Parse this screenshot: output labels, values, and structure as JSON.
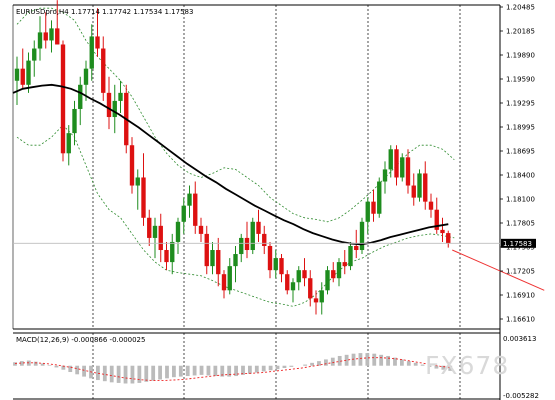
{
  "chart_data": [
    {
      "type": "candlestick",
      "header": "EURUSDpro,H4  1.17714 1.17742 1.17534 1.17583",
      "y_ticks": [
        "1.20485",
        "1.20185",
        "1.19890",
        "1.19590",
        "1.19295",
        "1.18995",
        "1.18695",
        "1.18400",
        "1.18100",
        "1.17805",
        "1.17505",
        "1.17205",
        "1.16910",
        "1.16610"
      ],
      "current_price_label": "1.17583",
      "current_price": 1.17583,
      "ylim": [
        1.1652,
        1.2054
      ],
      "candles_ohlc": [
        [
          1.196,
          1.199,
          1.193,
          1.1975
        ],
        [
          1.1975,
          1.2,
          1.195,
          1.1955
        ],
        [
          1.1955,
          1.1995,
          1.1945,
          1.1985
        ],
        [
          1.1985,
          1.201,
          1.1965,
          1.2
        ],
        [
          1.2,
          1.204,
          1.1985,
          1.202
        ],
        [
          1.202,
          1.2045,
          1.2,
          1.201
        ],
        [
          1.201,
          1.2035,
          1.1995,
          1.2025
        ],
        [
          1.2025,
          1.206,
          1.2005,
          1.2005
        ],
        [
          1.2005,
          1.201,
          1.186,
          1.187
        ],
        [
          1.187,
          1.1905,
          1.1855,
          1.1895
        ],
        [
          1.1895,
          1.1935,
          1.188,
          1.1925
        ],
        [
          1.1925,
          1.1965,
          1.1905,
          1.1955
        ],
        [
          1.1955,
          1.1985,
          1.1935,
          1.1975
        ],
        [
          1.1975,
          1.203,
          1.196,
          1.2015
        ],
        [
          1.2015,
          1.205,
          1.199,
          1.2
        ],
        [
          1.2,
          1.2015,
          1.1935,
          1.1945
        ],
        [
          1.1945,
          1.1965,
          1.19,
          1.1915
        ],
        [
          1.1915,
          1.1955,
          1.1895,
          1.1935
        ],
        [
          1.1935,
          1.196,
          1.192,
          1.1945
        ],
        [
          1.1945,
          1.1955,
          1.187,
          1.188
        ],
        [
          1.188,
          1.189,
          1.182,
          1.183
        ],
        [
          1.183,
          1.185,
          1.18,
          1.184
        ],
        [
          1.184,
          1.187,
          1.178,
          1.179
        ],
        [
          1.179,
          1.18,
          1.1755,
          1.1765
        ],
        [
          1.1765,
          1.179,
          1.174,
          1.178
        ],
        [
          1.178,
          1.1795,
          1.1735,
          1.175
        ],
        [
          1.175,
          1.176,
          1.1725,
          1.1735
        ],
        [
          1.1735,
          1.177,
          1.172,
          1.176
        ],
        [
          1.176,
          1.179,
          1.1745,
          1.1785
        ],
        [
          1.1785,
          1.1815,
          1.177,
          1.1805
        ],
        [
          1.1805,
          1.183,
          1.179,
          1.182
        ],
        [
          1.182,
          1.1835,
          1.177,
          1.178
        ],
        [
          1.178,
          1.179,
          1.176,
          1.177
        ],
        [
          1.177,
          1.178,
          1.172,
          1.173
        ],
        [
          1.173,
          1.176,
          1.172,
          1.175
        ],
        [
          1.175,
          1.1765,
          1.1705,
          1.172
        ],
        [
          1.172,
          1.1725,
          1.169,
          1.17
        ],
        [
          1.17,
          1.174,
          1.1695,
          1.173
        ],
        [
          1.173,
          1.1755,
          1.171,
          1.1745
        ],
        [
          1.1745,
          1.177,
          1.1735,
          1.1765
        ],
        [
          1.1765,
          1.1785,
          1.174,
          1.175
        ],
        [
          1.175,
          1.179,
          1.1745,
          1.1785
        ],
        [
          1.1785,
          1.18,
          1.176,
          1.177
        ],
        [
          1.177,
          1.178,
          1.1745,
          1.1755
        ],
        [
          1.1755,
          1.176,
          1.1715,
          1.1725
        ],
        [
          1.1725,
          1.175,
          1.1715,
          1.174
        ],
        [
          1.174,
          1.1745,
          1.171,
          1.172
        ],
        [
          1.172,
          1.1725,
          1.1695,
          1.17
        ],
        [
          1.17,
          1.1715,
          1.1685,
          1.171
        ],
        [
          1.171,
          1.173,
          1.17,
          1.1725
        ],
        [
          1.1725,
          1.174,
          1.1705,
          1.1715
        ],
        [
          1.1715,
          1.1725,
          1.168,
          1.169
        ],
        [
          1.169,
          1.17,
          1.167,
          1.1685
        ],
        [
          1.1685,
          1.171,
          1.167,
          1.17
        ],
        [
          1.17,
          1.173,
          1.1695,
          1.1725
        ],
        [
          1.1725,
          1.1735,
          1.171,
          1.1715
        ],
        [
          1.1715,
          1.174,
          1.1705,
          1.1735
        ],
        [
          1.1735,
          1.175,
          1.172,
          1.173
        ],
        [
          1.173,
          1.176,
          1.1725,
          1.1755
        ],
        [
          1.1755,
          1.1775,
          1.174,
          1.175
        ],
        [
          1.175,
          1.179,
          1.1745,
          1.1785
        ],
        [
          1.1785,
          1.1815,
          1.177,
          1.181
        ],
        [
          1.181,
          1.1825,
          1.1785,
          1.1795
        ],
        [
          1.1795,
          1.184,
          1.179,
          1.1835
        ],
        [
          1.1835,
          1.186,
          1.182,
          1.185
        ],
        [
          1.185,
          1.188,
          1.184,
          1.1875
        ],
        [
          1.1875,
          1.188,
          1.183,
          1.184
        ],
        [
          1.184,
          1.187,
          1.1835,
          1.1865
        ],
        [
          1.1865,
          1.1875,
          1.182,
          1.183
        ],
        [
          1.183,
          1.1845,
          1.1805,
          1.1815
        ],
        [
          1.1815,
          1.185,
          1.181,
          1.1845
        ],
        [
          1.1845,
          1.186,
          1.18,
          1.181
        ],
        [
          1.181,
          1.182,
          1.179,
          1.18
        ],
        [
          1.18,
          1.1815,
          1.177,
          1.1775
        ],
        [
          1.1775,
          1.179,
          1.176,
          1.1771
        ],
        [
          1.1771,
          1.1774,
          1.1753,
          1.1758
        ]
      ],
      "ma": [
        1.1945,
        1.195,
        1.1952,
        1.1954,
        1.1955,
        1.1953,
        1.195,
        1.1945,
        1.1938,
        1.1932,
        1.1925,
        1.1918,
        1.191,
        1.1902,
        1.1893,
        1.1884,
        1.1875,
        1.1866,
        1.1857,
        1.1849,
        1.1841,
        1.1834,
        1.1826,
        1.1819,
        1.1812,
        1.1805,
        1.1799,
        1.1793,
        1.1787,
        1.1782,
        1.1776,
        1.1771,
        1.1767,
        1.1763,
        1.176,
        1.1758,
        1.1757,
        1.1759,
        1.1762,
        1.1766,
        1.1769,
        1.1772,
        1.1775,
        1.1778,
        1.178,
        1.1782
      ],
      "bb_upper": [
        1.203,
        1.2045,
        1.205,
        1.205,
        1.2045,
        1.2035,
        1.201,
        1.199,
        1.1975,
        1.196,
        1.194,
        1.1915,
        1.189,
        1.187,
        1.1855,
        1.1845,
        1.184,
        1.1845,
        1.1852,
        1.185,
        1.184,
        1.183,
        1.1815,
        1.1805,
        1.1795,
        1.179,
        1.1788,
        1.1785,
        1.179,
        1.18,
        1.1812,
        1.1825,
        1.184,
        1.1855,
        1.187,
        1.188,
        1.188,
        1.1875,
        1.1862
      ],
      "bb_lower": [
        1.189,
        1.188,
        1.188,
        1.189,
        1.1905,
        1.189,
        1.1855,
        1.182,
        1.18,
        1.179,
        1.177,
        1.175,
        1.1735,
        1.1725,
        1.1722,
        1.172,
        1.1718,
        1.1712,
        1.1705,
        1.17,
        1.1695,
        1.169,
        1.1685,
        1.1683,
        1.168,
        1.1685,
        1.1695,
        1.171,
        1.1725,
        1.1735,
        1.174,
        1.1748,
        1.1755,
        1.176,
        1.1765,
        1.1768,
        1.177,
        1.1768,
        1.1765
      ],
      "bb_color": "#2e8b2e",
      "forecast_line": [
        [
          1.175,
          0
        ],
        [
          1.17,
          16
        ]
      ],
      "colors": {
        "bull": "#1e8c1e",
        "bear": "#dd1111",
        "ma": "#000000",
        "forecast": "#ee3333",
        "grid": "#000000"
      }
    },
    {
      "type": "bar",
      "header": "MACD(12,26,9) -0.000866 -0.000025",
      "y_ticks_top": "0.003613",
      "y_ticks_bottom": "-0.005282",
      "ylim": [
        -0.005282,
        0.003613
      ],
      "values": [
        0.0006,
        0.0008,
        0.0009,
        0.0007,
        0.0004,
        0.0001,
        -0.0003,
        -0.0007,
        -0.0011,
        -0.0015,
        -0.0019,
        -0.0022,
        -0.0025,
        -0.0027,
        -0.0029,
        -0.003,
        -0.0031,
        -0.0031,
        -0.003,
        -0.0028,
        -0.0026,
        -0.0024,
        -0.0022,
        -0.002,
        -0.0019,
        -0.0018,
        -0.0017,
        -0.0016,
        -0.0017,
        -0.0018,
        -0.0019,
        -0.0019,
        -0.0018,
        -0.0016,
        -0.0014,
        -0.0012,
        -0.001,
        -0.0008,
        -0.0006,
        -0.0004,
        -0.0002,
        0.0,
        0.0002,
        0.0005,
        0.0008,
        0.0011,
        0.0014,
        0.0017,
        0.0019,
        0.0021,
        0.0022,
        0.0022,
        0.0021,
        0.0019,
        0.0017,
        0.0014,
        0.0011,
        0.0008,
        0.0005,
        0.0002,
        -0.0002,
        -0.0005,
        -0.0007,
        -0.0009
      ],
      "signal": [
        0.0004,
        0.0005,
        0.0005,
        0.0004,
        0.0002,
        -0.0001,
        -0.0004,
        -0.0008,
        -0.0012,
        -0.0015,
        -0.0018,
        -0.0021,
        -0.0023,
        -0.0025,
        -0.0026,
        -0.0026,
        -0.0025,
        -0.0024,
        -0.0022,
        -0.002,
        -0.0018,
        -0.0016,
        -0.0015,
        -0.0014,
        -0.0013,
        -0.0012,
        -0.001,
        -0.0008,
        -0.0006,
        -0.0004,
        -0.0001,
        0.0002,
        0.0005,
        0.0008,
        0.0011,
        0.0013,
        0.0014,
        0.0014,
        0.0013,
        0.0011,
        0.0008,
        0.0005,
        0.0002,
        -0.0001,
        -0.0003
      ],
      "colors": {
        "hist": "#bbbbbb",
        "signal": "#ee2222"
      }
    }
  ],
  "watermark": "FX678"
}
